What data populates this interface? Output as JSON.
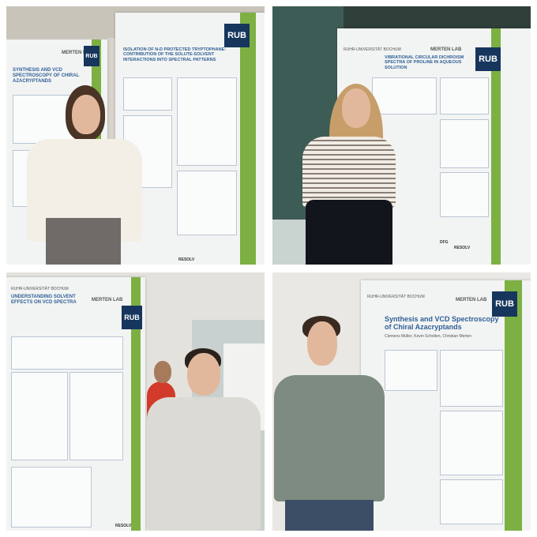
{
  "panels": [
    {
      "posters": [
        {
          "title": "SYNTHESIS AND VCD SPECTROSCOPY OF CHIRAL AZACRYPTANDS",
          "lab": "MERTEN LAB",
          "logo": "RUB"
        },
        {
          "title": "ISOLATION OF N-D PROTECTED TRYPTOPHANE: CONTRIBUTION OF THE SOLUTE-SOLVENT INTERACTIONS INTO SPECTRAL PATTERNS",
          "logo": "RUB",
          "footer": "RESOLV"
        }
      ]
    },
    {
      "posters": [
        {
          "university": "RUHR-UNIVERSITÄT BOCHUM",
          "lab": "MERTEN LAB",
          "title": "VIBRATIONAL CIRCULAR DICHROISM SPECTRA OF PROLINE IN AQUEOUS SOLUTION",
          "logo": "RUB",
          "funder": "DFG",
          "footer": "RESOLV"
        }
      ]
    },
    {
      "posters": [
        {
          "university": "RUHR-UNIVERSITÄT BOCHUM",
          "lab": "MERTEN LAB",
          "title": "UNDERSTANDING SOLVENT EFFECTS ON VCD SPECTRA",
          "logo": "RUB",
          "footer": "RESOLV"
        }
      ]
    },
    {
      "posters": [
        {
          "university": "RUHR-UNIVERSITÄT BOCHUM",
          "lab": "MERTEN LAB",
          "title": "Synthesis and VCD Spectroscopy of Chiral Azacryptands",
          "authors": "Clemens Müller, Kevin Scholten, Christian Merten",
          "logo": "RUB"
        }
      ]
    }
  ]
}
